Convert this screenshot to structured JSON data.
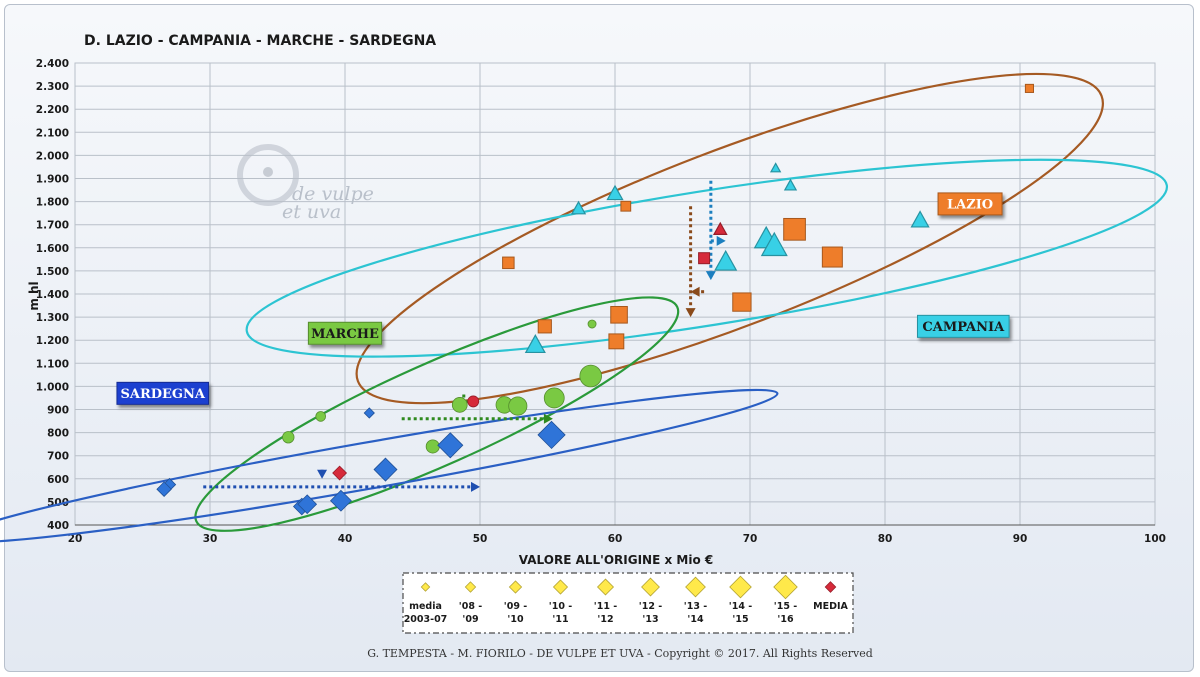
{
  "chart_data": {
    "type": "scatter",
    "title": "D. LAZIO - CAMPANIA - MARCHE - SARDEGNA",
    "xlabel": "VALORE ALL'ORIGINE  x Mio €",
    "ylabel": "m hl",
    "xlim": [
      20,
      100
    ],
    "ylim": [
      400,
      2400
    ],
    "x_ticks": [
      20,
      30,
      40,
      50,
      60,
      70,
      80,
      90,
      100
    ],
    "y_ticks": [
      400,
      500,
      600,
      700,
      800,
      900,
      1000,
      1100,
      1200,
      1300,
      1400,
      1500,
      1600,
      1700,
      1800,
      1900,
      2000,
      2100,
      2200,
      2300,
      2400
    ],
    "y_tick_labels": [
      "400",
      "500",
      "600",
      "700",
      "800",
      "900",
      "1.000",
      "1.100",
      "1.200",
      "1.300",
      "1.400",
      "1.500",
      "1.600",
      "1.700",
      "1.800",
      "1.900",
      "2.000",
      "2.100",
      "2.200",
      "2.300",
      "2.400"
    ],
    "grid": true,
    "series": [
      {
        "name": "LAZIO",
        "marker": "square",
        "color": "#ee7d2a",
        "points": [
          {
            "x": 90.7,
            "y": 2290,
            "s": 1
          },
          {
            "x": 60.8,
            "y": 1780,
            "s": 2
          },
          {
            "x": 52.1,
            "y": 1535,
            "s": 3
          },
          {
            "x": 54.8,
            "y": 1260,
            "s": 4
          },
          {
            "x": 60.1,
            "y": 1195,
            "s": 5
          },
          {
            "x": 60.3,
            "y": 1310,
            "s": 6
          },
          {
            "x": 69.4,
            "y": 1365,
            "s": 7
          },
          {
            "x": 76.1,
            "y": 1560,
            "s": 8
          },
          {
            "x": 73.3,
            "y": 1680,
            "s": 9
          },
          {
            "x": 66.6,
            "y": 1555,
            "s": 10,
            "media": true
          }
        ],
        "arrow": {
          "from": [
            65.6,
            1780
          ],
          "to": [
            65.6,
            1300
          ],
          "color": "#8a4a1a"
        },
        "arrow2": {
          "from": [
            66.6,
            1410
          ],
          "to": [
            65.6,
            1410
          ],
          "color": "#8a4a1a"
        },
        "ellipse": {
          "cx": 68.5,
          "cy": 1640,
          "rx": 29.5,
          "ry": 380,
          "angle": 21,
          "color": "#a55a23"
        },
        "label": {
          "text": "LAZIO",
          "x": 86.3,
          "y": 1790,
          "bg": "#ee7d2a",
          "fg": "#ffffff"
        }
      },
      {
        "name": "CAMPANIA",
        "marker": "triangle",
        "color": "#38d0e6",
        "points": [
          {
            "x": 71.9,
            "y": 1945,
            "s": 1
          },
          {
            "x": 73.0,
            "y": 1870,
            "s": 2
          },
          {
            "x": 57.3,
            "y": 1770,
            "s": 3
          },
          {
            "x": 60.0,
            "y": 1835,
            "s": 4
          },
          {
            "x": 82.6,
            "y": 1720,
            "s": 5
          },
          {
            "x": 54.1,
            "y": 1180,
            "s": 6
          },
          {
            "x": 68.2,
            "y": 1540,
            "s": 7
          },
          {
            "x": 71.2,
            "y": 1640,
            "s": 8
          },
          {
            "x": 71.8,
            "y": 1610,
            "s": 9
          },
          {
            "x": 67.8,
            "y": 1680,
            "s": 10,
            "media": true
          }
        ],
        "arrow": {
          "from": [
            67.1,
            1890
          ],
          "to": [
            67.1,
            1460
          ],
          "color": "#1c7fbf"
        },
        "arrow2": {
          "from": [
            67.1,
            1630
          ],
          "to": [
            68.2,
            1630
          ],
          "color": "#1c7fbf"
        },
        "ellipse": {
          "cx": 66.8,
          "cy": 1555,
          "rx": 34.5,
          "ry": 290,
          "angle": 9,
          "color": "#2cc4d2"
        },
        "label": {
          "text": "CAMPANIA",
          "x": 85.8,
          "y": 1260,
          "bg": "#38d0e6",
          "fg": "#1a1a1a"
        }
      },
      {
        "name": "MARCHE",
        "marker": "circle",
        "color": "#7ac943",
        "points": [
          {
            "x": 58.3,
            "y": 1270,
            "s": 1
          },
          {
            "x": 38.2,
            "y": 870,
            "s": 2
          },
          {
            "x": 35.8,
            "y": 780,
            "s": 3
          },
          {
            "x": 46.5,
            "y": 740,
            "s": 4
          },
          {
            "x": 48.5,
            "y": 920,
            "s": 5
          },
          {
            "x": 51.8,
            "y": 920,
            "s": 6
          },
          {
            "x": 52.8,
            "y": 915,
            "s": 7
          },
          {
            "x": 55.5,
            "y": 950,
            "s": 8
          },
          {
            "x": 58.2,
            "y": 1045,
            "s": 9
          },
          {
            "x": 49.5,
            "y": 935,
            "s": 10,
            "media": true
          }
        ],
        "arrow": {
          "from": [
            44.2,
            860
          ],
          "to": [
            55.4,
            860
          ],
          "color": "#2f8a1f"
        },
        "arrow2": {
          "from": [
            48.8,
            965
          ],
          "to": [
            48.8,
            900
          ],
          "color": "#2f8a1f"
        },
        "ellipse": {
          "cx": 46.8,
          "cy": 880,
          "rx": 19.5,
          "ry": 220,
          "angle": 24,
          "color": "#2a9a3a"
        },
        "label": {
          "text": "MARCHE",
          "x": 40.0,
          "y": 1230,
          "bg": "#7ac943",
          "fg": "#1a1a1a"
        }
      },
      {
        "name": "SARDEGNA",
        "marker": "diamond",
        "color": "#2f74d8",
        "points": [
          {
            "x": 41.8,
            "y": 885,
            "s": 1
          },
          {
            "x": 27.0,
            "y": 575,
            "s": 2
          },
          {
            "x": 26.6,
            "y": 555,
            "s": 3
          },
          {
            "x": 36.8,
            "y": 480,
            "s": 4
          },
          {
            "x": 37.2,
            "y": 490,
            "s": 5
          },
          {
            "x": 39.7,
            "y": 505,
            "s": 6
          },
          {
            "x": 43.0,
            "y": 640,
            "s": 7
          },
          {
            "x": 47.8,
            "y": 745,
            "s": 8
          },
          {
            "x": 55.3,
            "y": 790,
            "s": 9
          },
          {
            "x": 39.6,
            "y": 625,
            "s": 10,
            "media": true
          }
        ],
        "arrow": {
          "from": [
            29.5,
            565
          ],
          "to": [
            50.0,
            565
          ],
          "color": "#1f4fb0"
        },
        "arrow2": {
          "from": [
            38.3,
            640
          ],
          "to": [
            38.3,
            600
          ],
          "color": "#1f4fb0"
        },
        "ellipse": {
          "cx": 41.5,
          "cy": 655,
          "rx": 31.0,
          "ry": 100,
          "angle": 10,
          "color": "#2a5fc4"
        },
        "label": {
          "text": "SARDEGNA",
          "x": 26.5,
          "y": 970,
          "bg": "#1f3fd0",
          "fg": "#ffffff"
        }
      }
    ],
    "legend": {
      "position": "bottom",
      "items": [
        {
          "label": "media\n2003-07",
          "size": 1
        },
        {
          "label": "'08 -\n'09",
          "size": 2
        },
        {
          "label": "'09 -\n'10",
          "size": 3
        },
        {
          "label": "'10 -\n'11",
          "size": 4
        },
        {
          "label": "'11 -\n'12",
          "size": 5
        },
        {
          "label": "'12 -\n'13",
          "size": 6
        },
        {
          "label": "'13 -\n'14",
          "size": 7
        },
        {
          "label": "'14 -\n'15",
          "size": 8
        },
        {
          "label": "'15 -\n'16",
          "size": 9
        },
        {
          "label": "MEDIA",
          "size": 0,
          "media": true
        }
      ],
      "marker_color": "#ffe94a",
      "media_color": "#d62a3a"
    },
    "footer": "G. TEMPESTA - M. FIORILO   -   DE VULPE ET UVA   -   Copyright © 2017. All Rights Reserved",
    "watermark": [
      "de vulpe",
      "et uva"
    ]
  }
}
